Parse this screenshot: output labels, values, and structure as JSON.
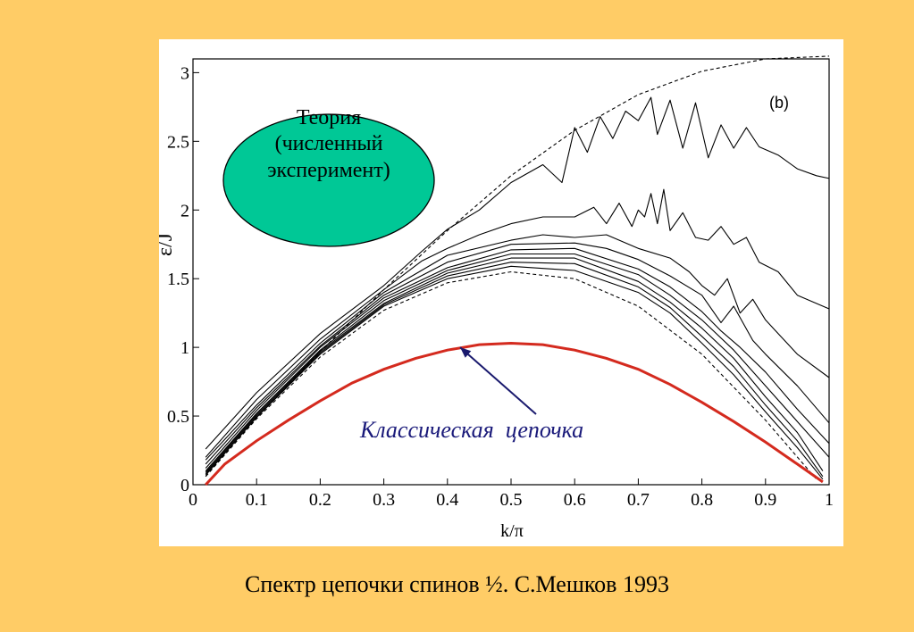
{
  "caption": "Спектр цепочки спинов ½. С.Мешков 1993",
  "colors": {
    "slide_background": "#ffcc66",
    "plot_background": "#ffffff",
    "classical_curve": "#d42a1e",
    "ellipse_fill": "#00c896",
    "annotation_text": "#1a1a7a",
    "arrow": "#1a1a6e"
  },
  "chart_data": {
    "type": "line",
    "xlabel": "k/π",
    "ylabel": "ε/J",
    "panel_label": "(b)",
    "xlim": [
      0,
      1
    ],
    "ylim": [
      0,
      3.1
    ],
    "xticks": [
      "0",
      "0.1",
      "0.2",
      "0.3",
      "0.4",
      "0.5",
      "0.6",
      "0.7",
      "0.8",
      "0.9",
      "1"
    ],
    "yticks": [
      "0",
      "0.5",
      "1",
      "1.5",
      "2",
      "2.5",
      "3"
    ],
    "grid": false,
    "ellipse_text": [
      "Теория",
      "(численный",
      "эксперимент)"
    ],
    "annotation": {
      "text": "Классическая  цепочка",
      "arrow_target": {
        "x": 0.42,
        "y": 1.0
      }
    },
    "series": [
      {
        "style": "dashed-upper",
        "x": [
          0.02,
          0.1,
          0.2,
          0.3,
          0.4,
          0.5,
          0.6,
          0.7,
          0.8,
          0.9,
          1.0
        ],
        "values": [
          0.06,
          0.49,
          0.97,
          1.42,
          1.85,
          2.25,
          2.58,
          2.84,
          3.01,
          3.1,
          3.12
        ]
      },
      {
        "style": "dashed-lower",
        "x": [
          0.02,
          0.1,
          0.2,
          0.3,
          0.4,
          0.5,
          0.6,
          0.7,
          0.8,
          0.9,
          0.98
        ],
        "values": [
          0.06,
          0.48,
          0.93,
          1.27,
          1.47,
          1.55,
          1.5,
          1.3,
          0.95,
          0.47,
          0.04
        ]
      },
      {
        "style": "solid",
        "x": [
          0.02,
          0.1,
          0.2,
          0.3,
          0.36,
          0.4,
          0.45,
          0.5,
          0.55,
          0.58,
          0.6,
          0.62,
          0.64,
          0.66,
          0.68,
          0.7,
          0.72,
          0.73,
          0.75,
          0.77,
          0.79,
          0.81,
          0.83,
          0.85,
          0.87,
          0.89,
          0.92,
          0.95,
          0.98,
          1.0
        ],
        "values": [
          0.26,
          0.67,
          1.1,
          1.45,
          1.7,
          1.86,
          2.0,
          2.2,
          2.33,
          2.2,
          2.6,
          2.42,
          2.68,
          2.52,
          2.72,
          2.65,
          2.82,
          2.55,
          2.8,
          2.45,
          2.78,
          2.38,
          2.62,
          2.45,
          2.6,
          2.46,
          2.4,
          2.3,
          2.25,
          2.23
        ]
      },
      {
        "style": "solid",
        "x": [
          0.02,
          0.1,
          0.2,
          0.3,
          0.36,
          0.4,
          0.45,
          0.5,
          0.55,
          0.6,
          0.63,
          0.65,
          0.67,
          0.69,
          0.7,
          0.71,
          0.72,
          0.73,
          0.74,
          0.75,
          0.77,
          0.79,
          0.81,
          0.83,
          0.85,
          0.87,
          0.89,
          0.92,
          0.95,
          1.0
        ],
        "values": [
          0.2,
          0.62,
          1.06,
          1.42,
          1.63,
          1.72,
          1.82,
          1.9,
          1.95,
          1.95,
          2.02,
          1.9,
          2.05,
          1.88,
          2.0,
          1.95,
          2.12,
          1.9,
          2.15,
          1.85,
          1.98,
          1.8,
          1.78,
          1.88,
          1.75,
          1.8,
          1.62,
          1.55,
          1.38,
          1.28
        ]
      },
      {
        "style": "solid",
        "x": [
          0.02,
          0.1,
          0.2,
          0.3,
          0.4,
          0.5,
          0.55,
          0.6,
          0.65,
          0.7,
          0.75,
          0.78,
          0.8,
          0.82,
          0.84,
          0.86,
          0.88,
          0.9,
          0.92,
          0.95,
          1.0
        ],
        "values": [
          0.18,
          0.58,
          1.03,
          1.4,
          1.67,
          1.78,
          1.82,
          1.8,
          1.82,
          1.72,
          1.65,
          1.55,
          1.45,
          1.38,
          1.5,
          1.25,
          1.35,
          1.2,
          1.1,
          0.95,
          0.78
        ]
      },
      {
        "style": "solid",
        "x": [
          0.02,
          0.1,
          0.2,
          0.3,
          0.4,
          0.5,
          0.6,
          0.65,
          0.7,
          0.75,
          0.8,
          0.83,
          0.85,
          0.88,
          0.9,
          0.95,
          1.0
        ],
        "values": [
          0.15,
          0.56,
          1.01,
          1.38,
          1.62,
          1.75,
          1.76,
          1.72,
          1.64,
          1.52,
          1.38,
          1.18,
          1.3,
          1.05,
          0.95,
          0.72,
          0.45
        ]
      },
      {
        "style": "solid",
        "x": [
          0.02,
          0.1,
          0.2,
          0.3,
          0.4,
          0.5,
          0.6,
          0.7,
          0.75,
          0.8,
          0.83,
          0.86,
          0.9,
          0.95,
          1.0
        ],
        "values": [
          0.12,
          0.54,
          1.0,
          1.36,
          1.58,
          1.71,
          1.72,
          1.57,
          1.44,
          1.26,
          1.12,
          1.0,
          0.82,
          0.55,
          0.3
        ]
      },
      {
        "style": "solid",
        "x": [
          0.02,
          0.1,
          0.2,
          0.3,
          0.4,
          0.5,
          0.6,
          0.7,
          0.75,
          0.8,
          0.85,
          0.9,
          0.95,
          1.0
        ],
        "values": [
          0.1,
          0.52,
          0.98,
          1.34,
          1.56,
          1.68,
          1.68,
          1.53,
          1.38,
          1.2,
          0.98,
          0.72,
          0.46,
          0.2
        ]
      },
      {
        "style": "solid",
        "x": [
          0.02,
          0.1,
          0.2,
          0.3,
          0.4,
          0.5,
          0.6,
          0.7,
          0.75,
          0.8,
          0.85,
          0.9,
          0.95,
          0.99
        ],
        "values": [
          0.09,
          0.51,
          0.97,
          1.32,
          1.54,
          1.65,
          1.65,
          1.48,
          1.33,
          1.14,
          0.92,
          0.64,
          0.38,
          0.1
        ]
      },
      {
        "style": "solid",
        "x": [
          0.02,
          0.1,
          0.2,
          0.3,
          0.4,
          0.5,
          0.6,
          0.7,
          0.75,
          0.8,
          0.85,
          0.9,
          0.95,
          0.99
        ],
        "values": [
          0.08,
          0.5,
          0.96,
          1.31,
          1.52,
          1.62,
          1.61,
          1.44,
          1.29,
          1.08,
          0.86,
          0.58,
          0.32,
          0.06
        ]
      },
      {
        "style": "solid",
        "x": [
          0.02,
          0.1,
          0.2,
          0.3,
          0.4,
          0.5,
          0.6,
          0.7,
          0.75,
          0.8,
          0.85,
          0.9,
          0.95,
          0.99
        ],
        "values": [
          0.07,
          0.49,
          0.95,
          1.3,
          1.5,
          1.59,
          1.56,
          1.4,
          1.25,
          1.03,
          0.8,
          0.53,
          0.27,
          0.04
        ]
      },
      {
        "style": "classical",
        "x": [
          0.02,
          0.05,
          0.1,
          0.15,
          0.2,
          0.25,
          0.3,
          0.35,
          0.4,
          0.45,
          0.5,
          0.55,
          0.6,
          0.65,
          0.7,
          0.75,
          0.8,
          0.85,
          0.9,
          0.95,
          0.99
        ],
        "values": [
          0.0,
          0.15,
          0.32,
          0.47,
          0.61,
          0.74,
          0.84,
          0.92,
          0.98,
          1.02,
          1.03,
          1.02,
          0.98,
          0.92,
          0.84,
          0.73,
          0.6,
          0.46,
          0.31,
          0.15,
          0.02
        ]
      }
    ]
  }
}
